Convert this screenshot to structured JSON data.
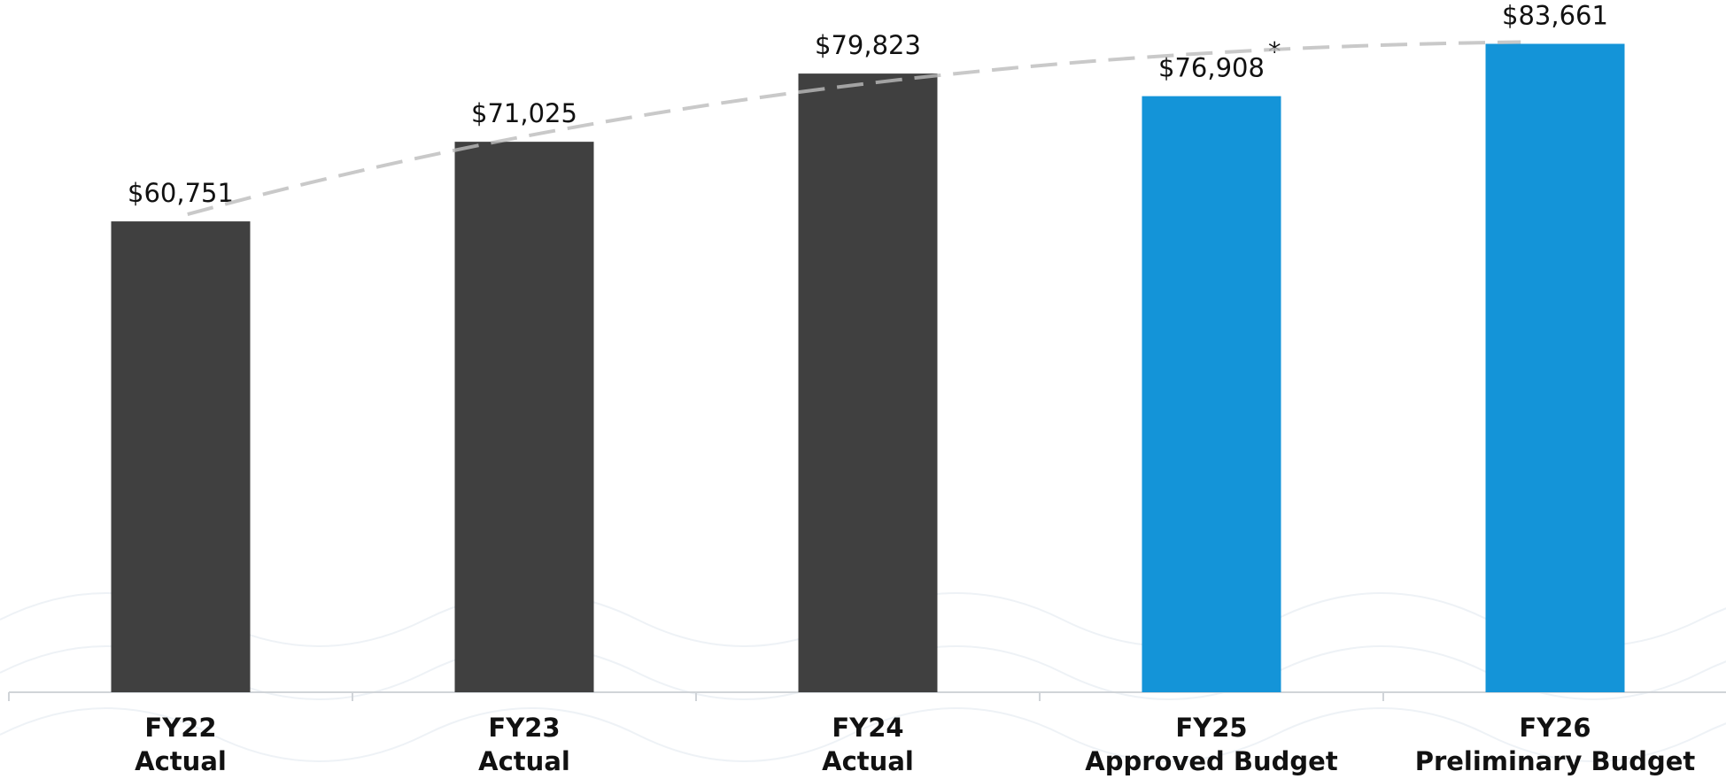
{
  "chart_data": {
    "type": "bar",
    "categories": [
      [
        "FY22",
        "Actual"
      ],
      [
        "FY23",
        "Actual"
      ],
      [
        "FY24",
        "Actual"
      ],
      [
        "FY25",
        "Approved Budget"
      ],
      [
        "FY26",
        "Preliminary Budget"
      ]
    ],
    "values": [
      60751,
      71025,
      79823,
      76908,
      83661
    ],
    "value_labels": [
      "$60,751",
      "$71,025",
      "$79,823",
      "$76,908",
      "$83,661"
    ],
    "value_notes": [
      null,
      null,
      null,
      "*",
      null
    ],
    "colors": [
      "#404040",
      "#404040",
      "#404040",
      "#1494d8",
      "#1494d8"
    ],
    "ylim": [
      0,
      90000
    ],
    "trendline": true
  }
}
